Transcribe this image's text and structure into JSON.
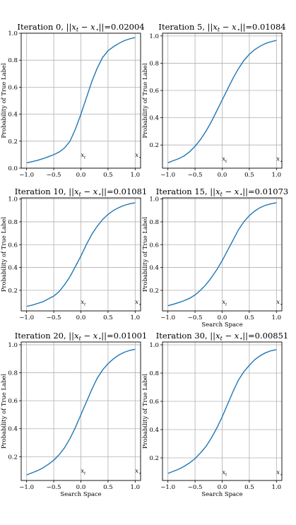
{
  "chart_data": [
    {
      "type": "line",
      "title": "Iteration 0, ||x_t − x_⋆||=0.02004",
      "xlabel": "",
      "ylabel": "Probability of True Label",
      "xlim": [
        -1.1,
        1.1
      ],
      "ylim": [
        0.0,
        1.0
      ],
      "xticks": [
        "−1.0",
        "−0.5",
        "0.0",
        "0.5",
        "1.0"
      ],
      "yticks": [
        "0.0",
        "0.2",
        "0.4",
        "0.6",
        "0.8",
        "1.0"
      ],
      "grid": true,
      "annotations": [
        {
          "text": "x_t",
          "x": 0.0,
          "y": 0.1
        },
        {
          "text": "x_⋆",
          "x": 1.0,
          "y": 0.1
        }
      ],
      "x": [
        -1.0,
        -0.9,
        -0.8,
        -0.7,
        -0.6,
        -0.5,
        -0.4,
        -0.3,
        -0.2,
        -0.1,
        0.0,
        0.1,
        0.2,
        0.3,
        0.4,
        0.5,
        0.6,
        0.7,
        0.8,
        0.9,
        1.0
      ],
      "values": [
        0.04,
        0.048,
        0.058,
        0.07,
        0.085,
        0.1,
        0.12,
        0.15,
        0.2,
        0.29,
        0.4,
        0.52,
        0.64,
        0.74,
        0.82,
        0.87,
        0.9,
        0.925,
        0.945,
        0.958,
        0.968
      ]
    },
    {
      "type": "line",
      "title": "Iteration 5, ||x_t − x_⋆||=0.01084",
      "xlabel": "",
      "ylabel": "Probability of True Label",
      "xlim": [
        -1.1,
        1.1
      ],
      "ylim": [
        0.03,
        1.02
      ],
      "xticks": [
        "−1.0",
        "−0.5",
        "0.0",
        "0.5",
        "1.0"
      ],
      "yticks": [
        "0.2",
        "0.4",
        "0.6",
        "0.8",
        "1.0"
      ],
      "grid": true,
      "annotations": [
        {
          "text": "x_t",
          "x": 0.0,
          "y": 0.1
        },
        {
          "text": "x_⋆",
          "x": 1.0,
          "y": 0.1
        }
      ],
      "x": [
        -1.0,
        -0.9,
        -0.8,
        -0.7,
        -0.6,
        -0.5,
        -0.4,
        -0.3,
        -0.2,
        -0.1,
        0.0,
        0.1,
        0.2,
        0.3,
        0.4,
        0.5,
        0.6,
        0.7,
        0.8,
        0.9,
        1.0
      ],
      "values": [
        0.07,
        0.085,
        0.1,
        0.12,
        0.15,
        0.19,
        0.24,
        0.3,
        0.37,
        0.45,
        0.53,
        0.61,
        0.69,
        0.76,
        0.82,
        0.865,
        0.9,
        0.925,
        0.945,
        0.958,
        0.967
      ]
    },
    {
      "type": "line",
      "title": "Iteration 10, ||x_t − x_⋆||=0.01081",
      "xlabel": "",
      "ylabel": "Probability of True Label",
      "xlim": [
        -1.1,
        1.1
      ],
      "ylim": [
        0.02,
        1.01
      ],
      "xticks": [
        "−1.0",
        "−0.5",
        "0.0",
        "0.5",
        "1.0"
      ],
      "yticks": [
        "0.2",
        "0.4",
        "0.6",
        "0.8",
        "1.0"
      ],
      "grid": true,
      "annotations": [
        {
          "text": "x_t",
          "x": 0.0,
          "y": 0.1
        },
        {
          "text": "x_⋆",
          "x": 1.0,
          "y": 0.1
        }
      ],
      "x": [
        -1.0,
        -0.9,
        -0.8,
        -0.7,
        -0.6,
        -0.5,
        -0.4,
        -0.3,
        -0.2,
        -0.1,
        0.0,
        0.1,
        0.2,
        0.3,
        0.4,
        0.5,
        0.6,
        0.7,
        0.8,
        0.9,
        1.0
      ],
      "values": [
        0.06,
        0.07,
        0.085,
        0.1,
        0.125,
        0.15,
        0.19,
        0.25,
        0.32,
        0.41,
        0.5,
        0.6,
        0.69,
        0.76,
        0.82,
        0.865,
        0.9,
        0.925,
        0.945,
        0.958,
        0.967
      ]
    },
    {
      "type": "line",
      "title": "Iteration 15, ||x_t − x_⋆||=0.01073",
      "xlabel": "Search Space",
      "ylabel": "Probability of True Label",
      "xlim": [
        -1.1,
        1.1
      ],
      "ylim": [
        0.02,
        1.01
      ],
      "xticks": [
        "−1.0",
        "−0.5",
        "0.0",
        "0.5",
        "1.0"
      ],
      "yticks": [
        "0.2",
        "0.4",
        "0.6",
        "0.8",
        "1.0"
      ],
      "grid": true,
      "annotations": [
        {
          "text": "x_t",
          "x": 0.0,
          "y": 0.1
        },
        {
          "text": "x_⋆",
          "x": 1.0,
          "y": 0.1
        }
      ],
      "x": [
        -1.0,
        -0.9,
        -0.8,
        -0.7,
        -0.6,
        -0.5,
        -0.4,
        -0.3,
        -0.2,
        -0.1,
        0.0,
        0.1,
        0.2,
        0.3,
        0.4,
        0.5,
        0.6,
        0.7,
        0.8,
        0.9,
        1.0
      ],
      "values": [
        0.065,
        0.078,
        0.093,
        0.11,
        0.13,
        0.16,
        0.2,
        0.25,
        0.31,
        0.38,
        0.46,
        0.55,
        0.64,
        0.73,
        0.8,
        0.855,
        0.895,
        0.925,
        0.945,
        0.958,
        0.967
      ]
    },
    {
      "type": "line",
      "title": "Iteration 20, ||x_t − x_⋆||=0.01001",
      "xlabel": "Search Space",
      "ylabel": "Probability of True Label",
      "xlim": [
        -1.1,
        1.1
      ],
      "ylim": [
        0.03,
        1.02
      ],
      "xticks": [
        "−1.0",
        "−0.5",
        "0.0",
        "0.5",
        "1.0"
      ],
      "yticks": [
        "0.2",
        "0.4",
        "0.6",
        "0.8",
        "1.0"
      ],
      "grid": true,
      "annotations": [
        {
          "text": "x_t",
          "x": 0.0,
          "y": 0.1
        },
        {
          "text": "x_⋆",
          "x": 1.0,
          "y": 0.1
        }
      ],
      "x": [
        -1.0,
        -0.9,
        -0.8,
        -0.7,
        -0.6,
        -0.5,
        -0.4,
        -0.3,
        -0.2,
        -0.1,
        0.0,
        0.1,
        0.2,
        0.3,
        0.4,
        0.5,
        0.6,
        0.7,
        0.8,
        0.9,
        1.0
      ],
      "values": [
        0.07,
        0.085,
        0.1,
        0.12,
        0.145,
        0.175,
        0.215,
        0.265,
        0.33,
        0.41,
        0.5,
        0.59,
        0.68,
        0.76,
        0.82,
        0.865,
        0.9,
        0.927,
        0.947,
        0.96,
        0.968
      ]
    },
    {
      "type": "line",
      "title": "Iteration 30, ||x_t − x_⋆||=0.00851",
      "xlabel": "Search Space",
      "ylabel": "Probability of True Label",
      "xlim": [
        -1.1,
        1.1
      ],
      "ylim": [
        0.04,
        1.02
      ],
      "xticks": [
        "−1.0",
        "−0.5",
        "0.0",
        "0.5",
        "1.0"
      ],
      "yticks": [
        "0.2",
        "0.4",
        "0.6",
        "0.8",
        "1.0"
      ],
      "grid": true,
      "annotations": [
        {
          "text": "x_t",
          "x": 0.0,
          "y": 0.1
        },
        {
          "text": "x_⋆",
          "x": 1.0,
          "y": 0.1
        }
      ],
      "x": [
        -1.0,
        -0.9,
        -0.8,
        -0.7,
        -0.6,
        -0.5,
        -0.4,
        -0.3,
        -0.2,
        -0.1,
        0.0,
        0.1,
        0.2,
        0.3,
        0.4,
        0.5,
        0.6,
        0.7,
        0.8,
        0.9,
        1.0
      ],
      "values": [
        0.09,
        0.105,
        0.12,
        0.14,
        0.165,
        0.195,
        0.235,
        0.28,
        0.34,
        0.41,
        0.49,
        0.58,
        0.67,
        0.75,
        0.81,
        0.855,
        0.895,
        0.923,
        0.944,
        0.958,
        0.966
      ]
    }
  ],
  "style": {
    "line_color": "#1f77b4"
  }
}
